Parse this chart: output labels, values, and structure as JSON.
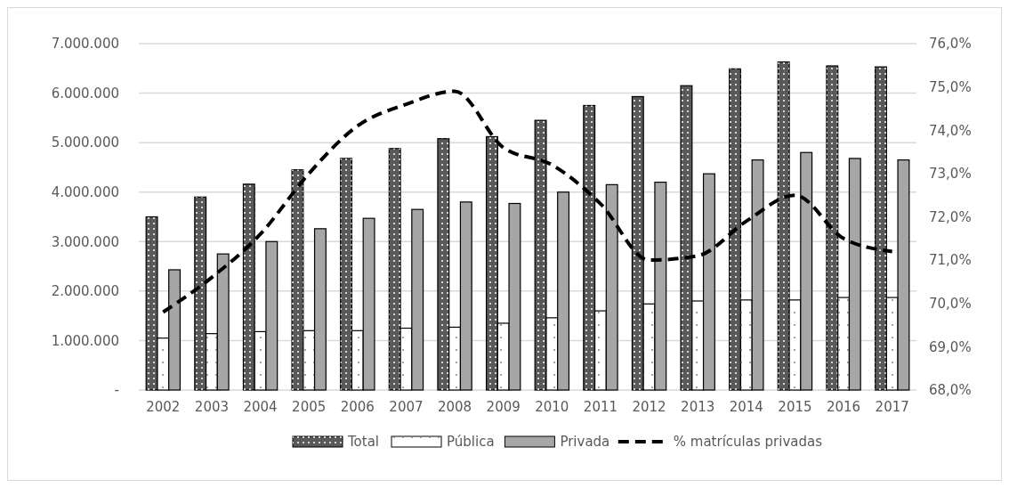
{
  "chart_data": {
    "type": "bar",
    "categories": [
      "2002",
      "2003",
      "2004",
      "2005",
      "2006",
      "2007",
      "2008",
      "2009",
      "2010",
      "2011",
      "2012",
      "2013",
      "2014",
      "2015",
      "2016",
      "2017"
    ],
    "series": [
      {
        "name": "Total",
        "color": "#595959",
        "values": [
          3500000,
          3900000,
          4160000,
          4450000,
          4680000,
          4880000,
          5080000,
          5120000,
          5450000,
          5750000,
          5930000,
          6150000,
          6490000,
          6630000,
          6550000,
          6530000
        ]
      },
      {
        "name": "Pública",
        "color": "#ffffff",
        "values": [
          1050000,
          1140000,
          1180000,
          1200000,
          1200000,
          1250000,
          1270000,
          1350000,
          1460000,
          1600000,
          1740000,
          1800000,
          1820000,
          1820000,
          1870000,
          1870000
        ]
      },
      {
        "name": "Privada",
        "color": "#a6a6a6",
        "values": [
          2430000,
          2750000,
          3000000,
          3260000,
          3470000,
          3650000,
          3800000,
          3770000,
          4000000,
          4150000,
          4200000,
          4370000,
          4650000,
          4800000,
          4680000,
          4650000
        ]
      },
      {
        "name": "% matrículas privadas",
        "type": "line",
        "axis": "y2",
        "color": "#000000",
        "line_style": "dashed",
        "values": [
          69.8,
          70.6,
          71.6,
          73.0,
          74.1,
          74.6,
          74.9,
          73.6,
          73.2,
          72.3,
          71.0,
          71.1,
          71.9,
          72.5,
          71.5,
          71.2
        ]
      }
    ],
    "ylim": [
      0,
      7000000
    ],
    "yticks": [
      {
        "value": 0,
        "label": "-"
      },
      {
        "value": 1000000,
        "label": "1.000.000"
      },
      {
        "value": 2000000,
        "label": "2.000.000"
      },
      {
        "value": 3000000,
        "label": "3.000.000"
      },
      {
        "value": 4000000,
        "label": "4.000.000"
      },
      {
        "value": 5000000,
        "label": "5.000.000"
      },
      {
        "value": 6000000,
        "label": "6.000.000"
      },
      {
        "value": 7000000,
        "label": "7.000.000"
      }
    ],
    "y2lim": [
      68,
      76
    ],
    "y2ticks": [
      {
        "value": 68,
        "label": "68,0%"
      },
      {
        "value": 69,
        "label": "69,0%"
      },
      {
        "value": 70,
        "label": "70,0%"
      },
      {
        "value": 71,
        "label": "71,0%"
      },
      {
        "value": 72,
        "label": "72,0%"
      },
      {
        "value": 73,
        "label": "73,0%"
      },
      {
        "value": 74,
        "label": "74,0%"
      },
      {
        "value": 75,
        "label": "75,0%"
      },
      {
        "value": 76,
        "label": "76,0%"
      }
    ],
    "grid": "y",
    "legend": "bottom"
  }
}
